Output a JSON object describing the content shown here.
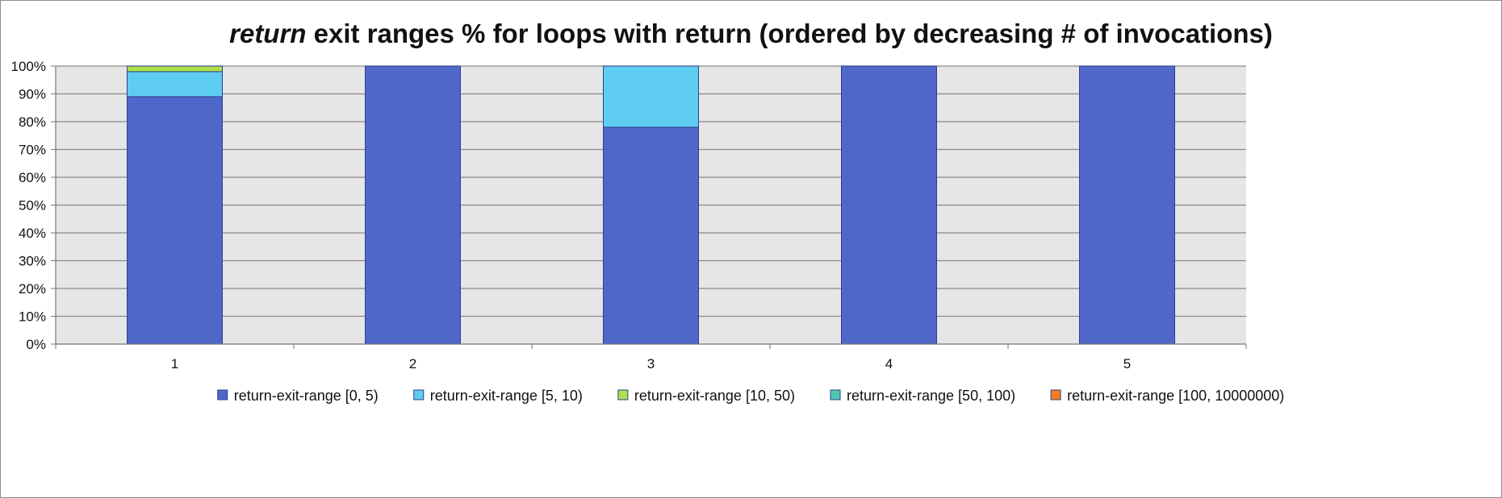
{
  "chart_data": {
    "type": "bar",
    "stacked": true,
    "title": {
      "emphasis": "return",
      "rest": " exit ranges % for loops with return (ordered by decreasing # of invocations)"
    },
    "xlabel": "",
    "ylabel": "",
    "categories": [
      "1",
      "2",
      "3",
      "4",
      "5"
    ],
    "y_ticks": [
      "0%",
      "10%",
      "20%",
      "30%",
      "40%",
      "50%",
      "60%",
      "70%",
      "80%",
      "90%",
      "100%"
    ],
    "ylim": [
      0,
      100
    ],
    "grid": true,
    "legend_position": "bottom",
    "series": [
      {
        "name": "return-exit-range [0, 5)",
        "color": "#4f67c9",
        "values": [
          89,
          100,
          78,
          100,
          100
        ]
      },
      {
        "name": "return-exit-range [5, 10)",
        "color": "#5fcdf2",
        "values": [
          9,
          0,
          22,
          0,
          0
        ]
      },
      {
        "name": "return-exit-range [10, 50)",
        "color": "#aee04a",
        "values": [
          2,
          0,
          0,
          0,
          0
        ]
      },
      {
        "name": "return-exit-range [50, 100)",
        "color": "#4fc9b0",
        "values": [
          0,
          0,
          0,
          0,
          0
        ]
      },
      {
        "name": "return-exit-range [100, 10000000)",
        "color": "#f57e1f",
        "values": [
          0,
          0,
          0,
          0,
          0
        ]
      }
    ]
  }
}
